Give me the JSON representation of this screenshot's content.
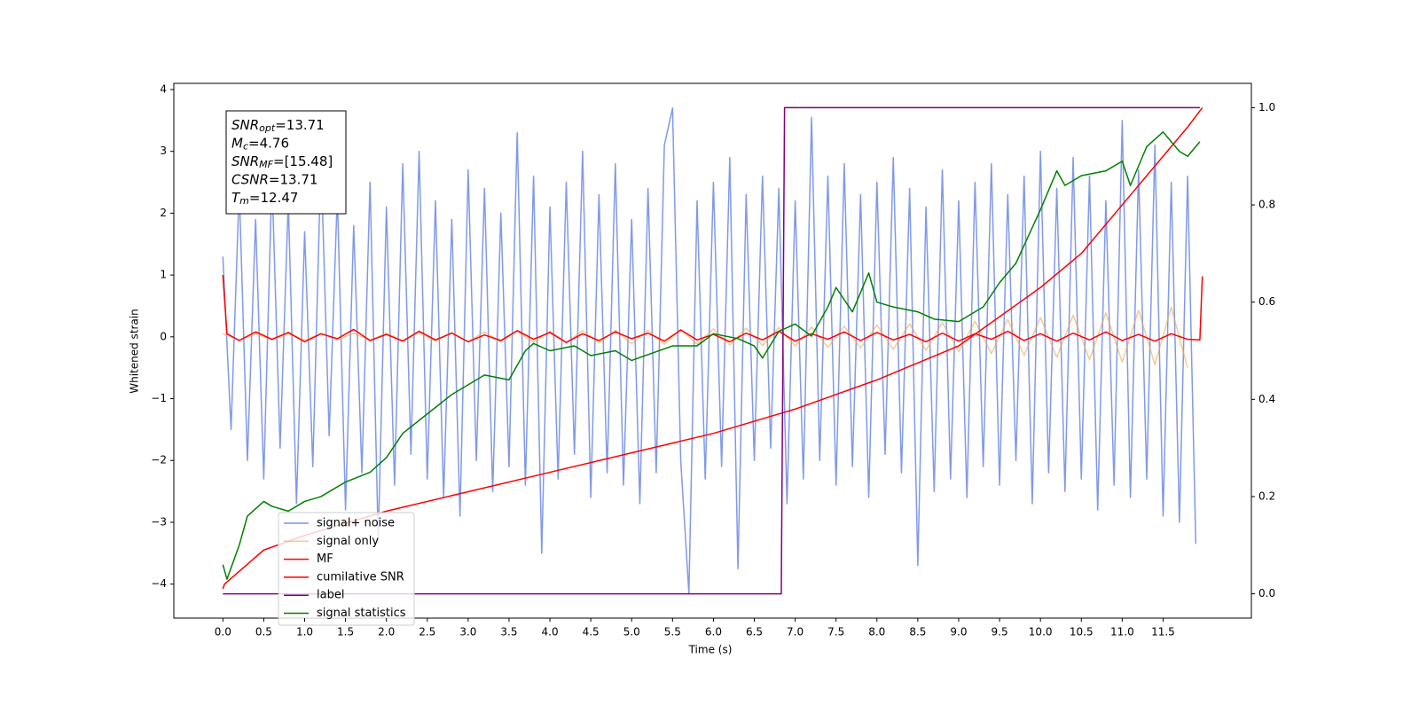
{
  "chart_data": {
    "type": "line",
    "xlabel": "Time (s)",
    "ylabel": "Whitened strain",
    "xlim": [
      -0.6,
      12.58
    ],
    "ylim": [
      -4.55,
      4.1
    ],
    "y2lim": [
      -0.05,
      1.05
    ],
    "xticks": [
      {
        "value": 0,
        "label": "0.0"
      },
      0.5,
      {
        "value": 1,
        "label": "1.0"
      },
      1.5,
      {
        "value": 2,
        "label": "2.0"
      },
      2.5,
      {
        "value": 3,
        "label": "3.0"
      },
      3.5,
      {
        "value": 4,
        "label": "4.0"
      },
      4.5,
      {
        "value": 5,
        "label": "5.0"
      },
      5.5,
      {
        "value": 6,
        "label": "6.0"
      },
      6.5,
      {
        "value": 7,
        "label": "7.0"
      },
      7.5,
      {
        "value": 8,
        "label": "8.0"
      },
      8.5,
      {
        "value": 9,
        "label": "9.0"
      },
      9.5,
      {
        "value": 10,
        "label": "10.0"
      },
      10.5,
      {
        "value": 11,
        "label": "11.0"
      },
      11.5
    ],
    "yticks": [
      {
        "value": -4,
        "label": "−4"
      },
      {
        "value": -3,
        "label": "−3"
      },
      {
        "value": -2,
        "label": "−2"
      },
      {
        "value": -1,
        "label": "−1"
      },
      0,
      1,
      2,
      3,
      4
    ],
    "y2ticks": [
      {
        "value": 0,
        "label": "0.0"
      },
      0.2,
      0.4,
      0.6,
      0.8,
      {
        "value": 1,
        "label": "1.0"
      }
    ],
    "annotation": [
      {
        "main": "SNR",
        "sub": "opt",
        "text": "=13.71"
      },
      {
        "main": "M",
        "sub": "c",
        "text": "=4.76"
      },
      {
        "main": "SNR",
        "sub": "MF",
        "text": "=[15.48]"
      },
      {
        "main": "CSNR",
        "text": "=13.71"
      },
      {
        "main": "T",
        "sub": "m",
        "text": "=12.47"
      }
    ],
    "series": [
      {
        "name": "signal+ noise",
        "color": "#7994e8",
        "x": [
          0.0,
          0.1,
          0.2,
          0.3,
          0.4,
          0.5,
          0.6,
          0.7,
          0.8,
          0.9,
          1.0,
          1.1,
          1.2,
          1.3,
          1.4,
          1.5,
          1.6,
          1.7,
          1.8,
          1.9,
          2.0,
          2.1,
          2.2,
          2.3,
          2.4,
          2.5,
          2.6,
          2.7,
          2.8,
          2.9,
          3.0,
          3.1,
          3.2,
          3.3,
          3.4,
          3.5,
          3.6,
          3.7,
          3.8,
          3.9,
          4.0,
          4.1,
          4.2,
          4.3,
          4.4,
          4.5,
          4.6,
          4.7,
          4.8,
          4.9,
          5.0,
          5.1,
          5.2,
          5.3,
          5.4,
          5.5,
          5.6,
          5.7,
          5.8,
          5.9,
          6.0,
          6.1,
          6.2,
          6.3,
          6.4,
          6.5,
          6.6,
          6.7,
          6.8,
          6.9,
          7.0,
          7.1,
          7.2,
          7.3,
          7.4,
          7.5,
          7.6,
          7.7,
          7.8,
          7.9,
          8.0,
          8.1,
          8.2,
          8.3,
          8.4,
          8.5,
          8.6,
          8.7,
          8.8,
          8.9,
          9.0,
          9.1,
          9.2,
          9.3,
          9.4,
          9.5,
          9.6,
          9.7,
          9.8,
          9.9,
          10.0,
          10.1,
          10.2,
          10.3,
          10.4,
          10.5,
          10.6,
          10.7,
          10.8,
          10.9,
          11.0,
          11.1,
          11.2,
          11.3,
          11.4,
          11.5,
          11.6,
          11.7,
          11.8,
          11.9
        ],
        "values": [
          1.3,
          -1.5,
          2.4,
          -2.0,
          1.9,
          -2.3,
          2.6,
          -1.8,
          2.2,
          -2.7,
          1.7,
          -2.1,
          2.9,
          -1.6,
          2.3,
          -2.8,
          1.8,
          -2.2,
          2.5,
          -3.3,
          2.1,
          -2.4,
          2.8,
          -1.9,
          3.0,
          -2.3,
          2.2,
          -2.6,
          1.9,
          -2.9,
          2.7,
          -2.0,
          2.4,
          -2.5,
          2.0,
          -2.1,
          3.3,
          -2.4,
          2.6,
          -3.5,
          2.1,
          -2.3,
          2.5,
          -1.9,
          3.0,
          -2.6,
          2.3,
          -2.2,
          2.8,
          -2.4,
          1.9,
          -2.7,
          2.4,
          -2.2,
          3.1,
          3.7,
          -2.0,
          -4.15,
          2.2,
          -2.3,
          2.5,
          -2.1,
          2.9,
          -3.75,
          2.3,
          -2.0,
          2.6,
          -1.8,
          2.4,
          -2.7,
          2.2,
          -2.3,
          3.55,
          -2.0,
          2.6,
          -2.4,
          2.8,
          -2.1,
          2.3,
          -2.6,
          2.5,
          -1.9,
          2.9,
          -2.2,
          2.4,
          -3.7,
          2.1,
          -2.5,
          2.7,
          -2.3,
          2.2,
          -2.6,
          2.5,
          -2.1,
          2.8,
          -2.4,
          2.3,
          -2.0,
          2.6,
          -2.7,
          3.0,
          -2.2,
          2.4,
          -2.5,
          2.9,
          -2.3,
          2.6,
          -2.8,
          2.2,
          -2.4,
          3.5,
          -2.6,
          2.7,
          -2.3,
          3.1,
          -2.9,
          2.5,
          -3.0,
          2.6,
          -3.35
        ]
      },
      {
        "name": "signal only",
        "color": "#f0a84a",
        "x": [
          0.0,
          0.2,
          0.4,
          0.6,
          0.8,
          1.0,
          1.2,
          1.4,
          1.6,
          1.8,
          2.0,
          2.2,
          2.4,
          2.6,
          2.8,
          3.0,
          3.2,
          3.4,
          3.6,
          3.8,
          4.0,
          4.2,
          4.4,
          4.6,
          4.8,
          5.0,
          5.2,
          5.4,
          5.6,
          5.8,
          6.0,
          6.2,
          6.4,
          6.6,
          6.8,
          7.0,
          7.2,
          7.4,
          7.6,
          7.8,
          8.0,
          8.2,
          8.4,
          8.6,
          8.8,
          9.0,
          9.2,
          9.4,
          9.6,
          9.8,
          10.0,
          10.2,
          10.4,
          10.6,
          10.8,
          11.0,
          11.2,
          11.4,
          11.6,
          11.8
        ],
        "values": [
          0.05,
          -0.05,
          0.05,
          -0.05,
          0.05,
          -0.05,
          0.05,
          -0.05,
          0.06,
          -0.06,
          0.06,
          -0.06,
          0.07,
          -0.07,
          0.07,
          -0.08,
          0.08,
          -0.08,
          0.09,
          -0.09,
          0.09,
          -0.1,
          0.1,
          -0.1,
          0.11,
          -0.11,
          0.11,
          -0.12,
          0.12,
          -0.12,
          0.13,
          -0.13,
          0.14,
          -0.14,
          0.15,
          -0.15,
          0.16,
          -0.17,
          0.17,
          -0.18,
          0.19,
          -0.2,
          0.21,
          -0.22,
          0.23,
          -0.24,
          0.25,
          -0.27,
          0.28,
          -0.3,
          0.31,
          -0.33,
          0.35,
          -0.37,
          0.39,
          -0.41,
          0.43,
          -0.45,
          0.48,
          -0.5
        ]
      },
      {
        "name": "MF",
        "color": "#ff0000",
        "x": [
          0.0,
          0.05,
          0.2,
          0.4,
          0.6,
          0.8,
          1.0,
          1.2,
          1.4,
          1.6,
          1.8,
          2.0,
          2.2,
          2.4,
          2.6,
          2.8,
          3.0,
          3.2,
          3.4,
          3.6,
          3.8,
          4.0,
          4.2,
          4.4,
          4.6,
          4.8,
          5.0,
          5.2,
          5.4,
          5.6,
          5.8,
          6.0,
          6.2,
          6.4,
          6.6,
          6.8,
          7.0,
          7.2,
          7.4,
          7.6,
          7.8,
          8.0,
          8.2,
          8.4,
          8.6,
          8.8,
          9.0,
          9.2,
          9.4,
          9.6,
          9.8,
          10.0,
          10.2,
          10.4,
          10.6,
          10.8,
          11.0,
          11.2,
          11.4,
          11.6,
          11.8,
          11.95,
          11.98
        ],
        "values": [
          1.0,
          0.05,
          -0.06,
          0.08,
          -0.04,
          0.07,
          -0.08,
          0.05,
          -0.03,
          0.12,
          -0.06,
          0.04,
          -0.07,
          0.09,
          -0.05,
          0.06,
          -0.08,
          0.03,
          -0.06,
          0.1,
          -0.04,
          0.07,
          -0.09,
          0.05,
          -0.06,
          0.08,
          -0.03,
          0.06,
          -0.07,
          0.11,
          -0.05,
          0.04,
          -0.08,
          0.06,
          -0.05,
          0.09,
          -0.07,
          0.05,
          -0.04,
          0.08,
          -0.06,
          0.07,
          -0.05,
          0.04,
          -0.08,
          0.06,
          -0.07,
          0.05,
          -0.04,
          0.09,
          -0.06,
          0.05,
          -0.07,
          0.06,
          -0.05,
          0.08,
          -0.06,
          0.04,
          -0.07,
          0.05,
          -0.04,
          -0.05,
          0.98
        ]
      },
      {
        "name": "cumilative SNR",
        "color": "#ff0000",
        "axis": "y2",
        "x": [
          0.0,
          0.02,
          0.5,
          1,
          2,
          3,
          4,
          5,
          6,
          7,
          8,
          9,
          10,
          10.5,
          11,
          11.5,
          11.8,
          11.98
        ],
        "values": [
          0.01,
          0.02,
          0.09,
          0.12,
          0.17,
          0.21,
          0.25,
          0.29,
          0.33,
          0.38,
          0.44,
          0.51,
          0.63,
          0.7,
          0.8,
          0.9,
          0.96,
          1.0
        ]
      },
      {
        "name": "label",
        "color": "#800080",
        "axis": "y2",
        "x": [
          0.0,
          6.83,
          6.87,
          11.95
        ],
        "values": [
          0,
          0,
          1,
          1
        ]
      },
      {
        "name": "signal statistics",
        "color": "#008000",
        "axis": "y2",
        "x": [
          0.0,
          0.05,
          0.2,
          0.3,
          0.5,
          0.6,
          0.8,
          1.0,
          1.2,
          1.5,
          1.8,
          2.0,
          2.2,
          2.5,
          2.8,
          3.0,
          3.2,
          3.5,
          3.7,
          3.8,
          4.0,
          4.3,
          4.5,
          4.8,
          5.0,
          5.5,
          5.8,
          6.0,
          6.3,
          6.5,
          6.6,
          6.8,
          7.0,
          7.2,
          7.4,
          7.5,
          7.7,
          7.8,
          7.9,
          8.0,
          8.2,
          8.5,
          8.7,
          9.0,
          9.3,
          9.5,
          9.7,
          10.0,
          10.2,
          10.3,
          10.5,
          10.8,
          11.0,
          11.1,
          11.3,
          11.5,
          11.7,
          11.8,
          11.95
        ],
        "values": [
          0.06,
          0.03,
          0.1,
          0.16,
          0.19,
          0.18,
          0.17,
          0.19,
          0.2,
          0.23,
          0.25,
          0.28,
          0.33,
          0.37,
          0.41,
          0.43,
          0.45,
          0.44,
          0.5,
          0.515,
          0.5,
          0.51,
          0.49,
          0.5,
          0.48,
          0.51,
          0.51,
          0.535,
          0.525,
          0.51,
          0.485,
          0.54,
          0.555,
          0.53,
          0.59,
          0.63,
          0.58,
          0.62,
          0.66,
          0.6,
          0.59,
          0.58,
          0.565,
          0.56,
          0.59,
          0.64,
          0.68,
          0.79,
          0.87,
          0.84,
          0.86,
          0.87,
          0.89,
          0.84,
          0.92,
          0.95,
          0.91,
          0.9,
          0.93
        ]
      }
    ]
  }
}
